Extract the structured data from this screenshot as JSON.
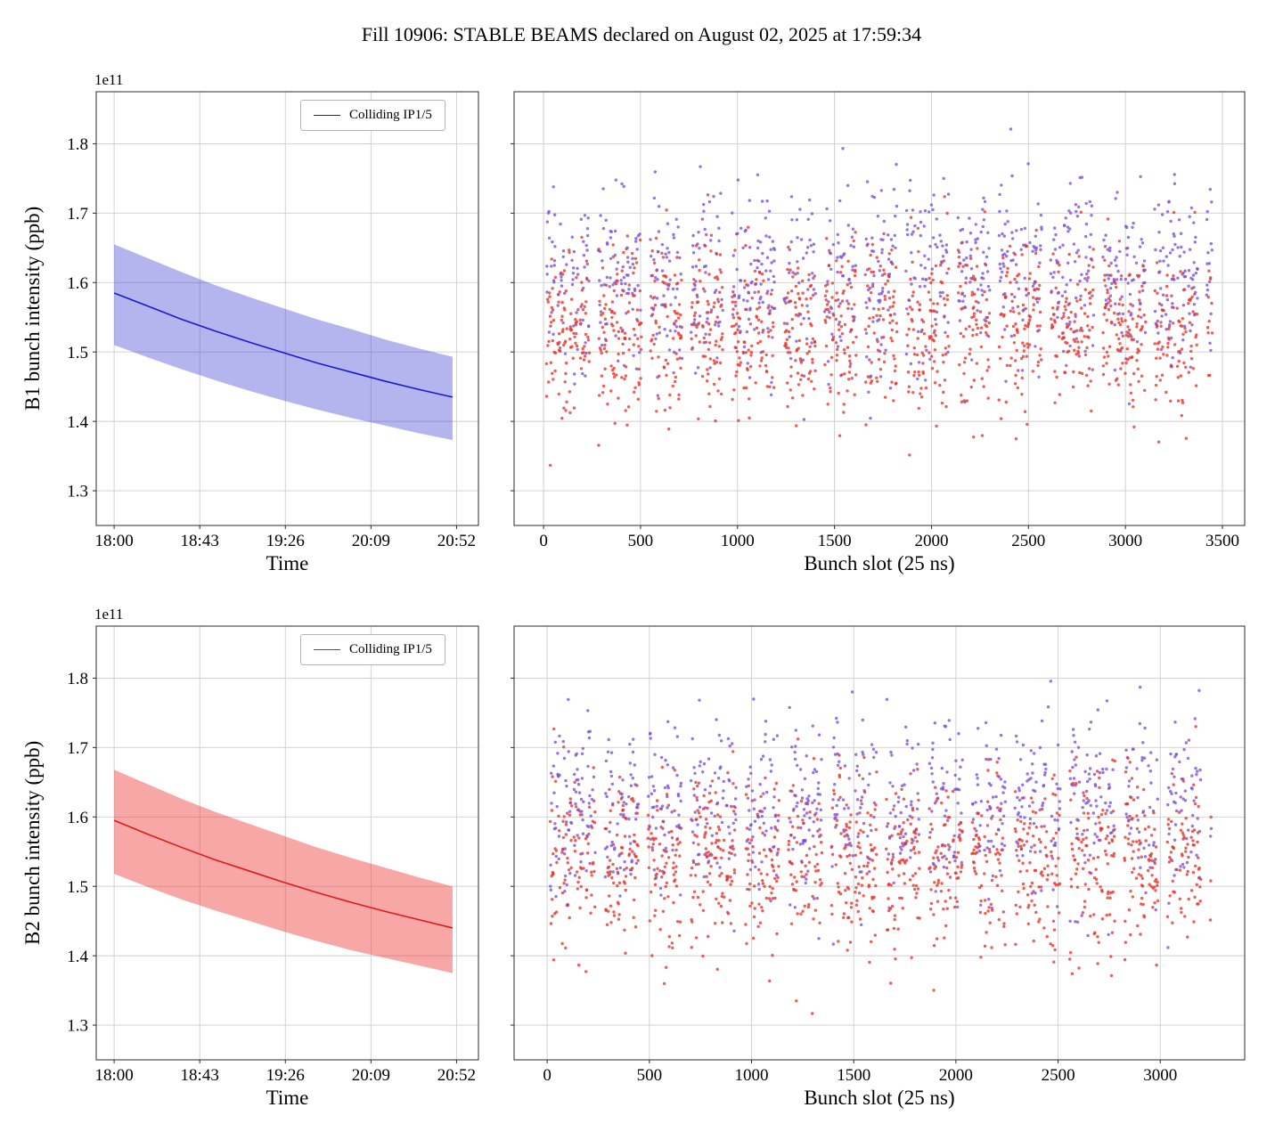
{
  "figure_title": "Fill 10906: STABLE BEAMS declared on August 02, 2025 at 17:59:34",
  "chart_data": [
    {
      "id": "b1_time",
      "type": "line",
      "xlabel": "Time",
      "ylabel": "B1 bunch intensity (ppb)",
      "offset_text": "1e11",
      "legend": {
        "label": "Colliding IP1/5",
        "color": "#1a1ad2"
      },
      "x_tick_labels": [
        "18:00",
        "18:43",
        "19:26",
        "20:09",
        "20:52"
      ],
      "x_tick_values": [
        0,
        43,
        86,
        129,
        172
      ],
      "xlim": [
        -9,
        183
      ],
      "ylim": [
        1.25,
        1.875
      ],
      "y_ticks": [
        1.3,
        1.4,
        1.5,
        1.6,
        1.7,
        1.8
      ],
      "show_y_tick_labels": true,
      "line_color": "#1a1ad2",
      "band_color": "#3a3ad6",
      "band_opacity": 0.38,
      "x": [
        0,
        17,
        34,
        51,
        68,
        85,
        102,
        119,
        136,
        153,
        170
      ],
      "mean": [
        1.585,
        1.566,
        1.547,
        1.53,
        1.514,
        1.499,
        1.484,
        1.471,
        1.458,
        1.446,
        1.435
      ],
      "upper": [
        1.655,
        1.635,
        1.615,
        1.596,
        1.579,
        1.563,
        1.547,
        1.533,
        1.518,
        1.505,
        1.493
      ],
      "lower": [
        1.51,
        1.492,
        1.475,
        1.459,
        1.444,
        1.43,
        1.417,
        1.405,
        1.394,
        1.383,
        1.373
      ]
    },
    {
      "id": "b1_scatter",
      "type": "scatter",
      "xlabel": "Bunch slot (25 ns)",
      "x_tick_labels": [
        "0",
        "500",
        "1000",
        "1500",
        "2000",
        "2500",
        "3000",
        "3500"
      ],
      "x_tick_values": [
        0,
        500,
        1000,
        1500,
        2000,
        2500,
        3000,
        3500
      ],
      "xlim": [
        -152,
        3615
      ],
      "ylim": [
        1.25,
        1.875
      ],
      "y_ticks": [
        1.3,
        1.4,
        1.5,
        1.6,
        1.7,
        1.8
      ],
      "show_y_tick_labels": false,
      "point_colors": {
        "red": "#e6332a",
        "purple": "#7a4fd8"
      },
      "generator": {
        "seed": 7,
        "start_slot": 15,
        "max_slot": 3450,
        "train_len": 48,
        "train_gap": 10,
        "group_gap": 46,
        "fill_prob": 0.94,
        "purple_share": 0.43,
        "red_mean": 1.535,
        "red_std": 0.062,
        "purple_mean": 1.612,
        "purple_std": 0.068,
        "y_clip": [
          1.287,
          1.845
        ]
      }
    },
    {
      "id": "b2_time",
      "type": "line",
      "xlabel": "Time",
      "ylabel": "B2 bunch intensity (ppb)",
      "offset_text": "1e11",
      "legend": {
        "label": "Colliding IP1/5",
        "color": "#e01a1a"
      },
      "x_tick_labels": [
        "18:00",
        "18:43",
        "19:26",
        "20:09",
        "20:52"
      ],
      "x_tick_values": [
        0,
        43,
        86,
        129,
        172
      ],
      "xlim": [
        -9,
        183
      ],
      "ylim": [
        1.25,
        1.875
      ],
      "y_ticks": [
        1.3,
        1.4,
        1.5,
        1.6,
        1.7,
        1.8
      ],
      "show_y_tick_labels": true,
      "line_color": "#e01a1a",
      "band_color": "#ee2e2e",
      "band_opacity": 0.42,
      "x": [
        0,
        17,
        34,
        51,
        68,
        85,
        102,
        119,
        136,
        153,
        170
      ],
      "mean": [
        1.595,
        1.575,
        1.556,
        1.538,
        1.522,
        1.506,
        1.491,
        1.477,
        1.464,
        1.452,
        1.44
      ],
      "upper": [
        1.668,
        1.647,
        1.626,
        1.607,
        1.59,
        1.573,
        1.556,
        1.541,
        1.527,
        1.513,
        1.5
      ],
      "lower": [
        1.518,
        1.499,
        1.481,
        1.465,
        1.45,
        1.435,
        1.421,
        1.408,
        1.397,
        1.386,
        1.375
      ]
    },
    {
      "id": "b2_scatter",
      "type": "scatter",
      "xlabel": "Bunch slot (25 ns)",
      "x_tick_labels": [
        "0",
        "500",
        "1000",
        "1500",
        "2000",
        "2500",
        "3000"
      ],
      "x_tick_values": [
        0,
        500,
        1000,
        1500,
        2000,
        2500,
        3000
      ],
      "xlim": [
        -162,
        3413
      ],
      "ylim": [
        1.25,
        1.875
      ],
      "y_ticks": [
        1.3,
        1.4,
        1.5,
        1.6,
        1.7,
        1.8
      ],
      "show_y_tick_labels": false,
      "point_colors": {
        "red": "#e6332a",
        "purple": "#7a4fd8"
      },
      "generator": {
        "seed": 99,
        "start_slot": 15,
        "max_slot": 3250,
        "train_len": 48,
        "train_gap": 10,
        "group_gap": 46,
        "fill_prob": 0.94,
        "purple_share": 0.43,
        "red_mean": 1.54,
        "red_std": 0.062,
        "purple_mean": 1.615,
        "purple_std": 0.068,
        "y_clip": [
          1.287,
          1.845
        ]
      }
    }
  ]
}
